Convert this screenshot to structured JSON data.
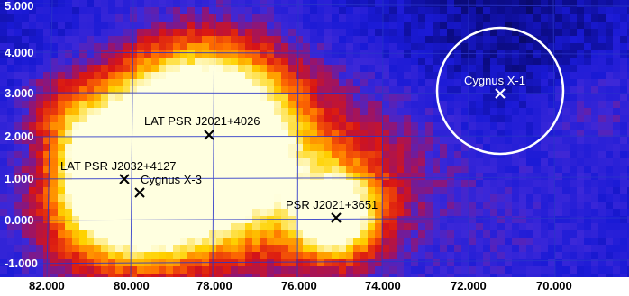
{
  "map": {
    "y_axis_ticks": [
      "5.000",
      "4.000",
      "3.000",
      "2.000",
      "1.000",
      "0.000",
      "-1.000"
    ],
    "x_axis_ticks": [
      "82.000",
      "80.000",
      "78.000",
      "76.000",
      "74.000",
      "72.000",
      "70.000"
    ],
    "colormap": [
      "#070738",
      "#1a1ad6",
      "#3a2ad8",
      "#8a1a5a",
      "#d81414",
      "#ff7a00",
      "#ffd200",
      "#ffffe0"
    ],
    "sources": [
      {
        "name": "LAT PSR J2021+4026",
        "marker_color": "#000000",
        "label_color": "#000000"
      },
      {
        "name": "LAT PSR J2032+4127",
        "marker_color": "#000000",
        "label_color": "#000000"
      },
      {
        "name": "Cygnus X-3",
        "marker_color": "#000000",
        "label_color": "#000000"
      },
      {
        "name": "PSR J2021+3651",
        "marker_color": "#000000",
        "label_color": "#000000"
      },
      {
        "name": "Cygnus X-1",
        "marker_color": "#ffffff",
        "label_color": "#ffffff"
      }
    ]
  }
}
